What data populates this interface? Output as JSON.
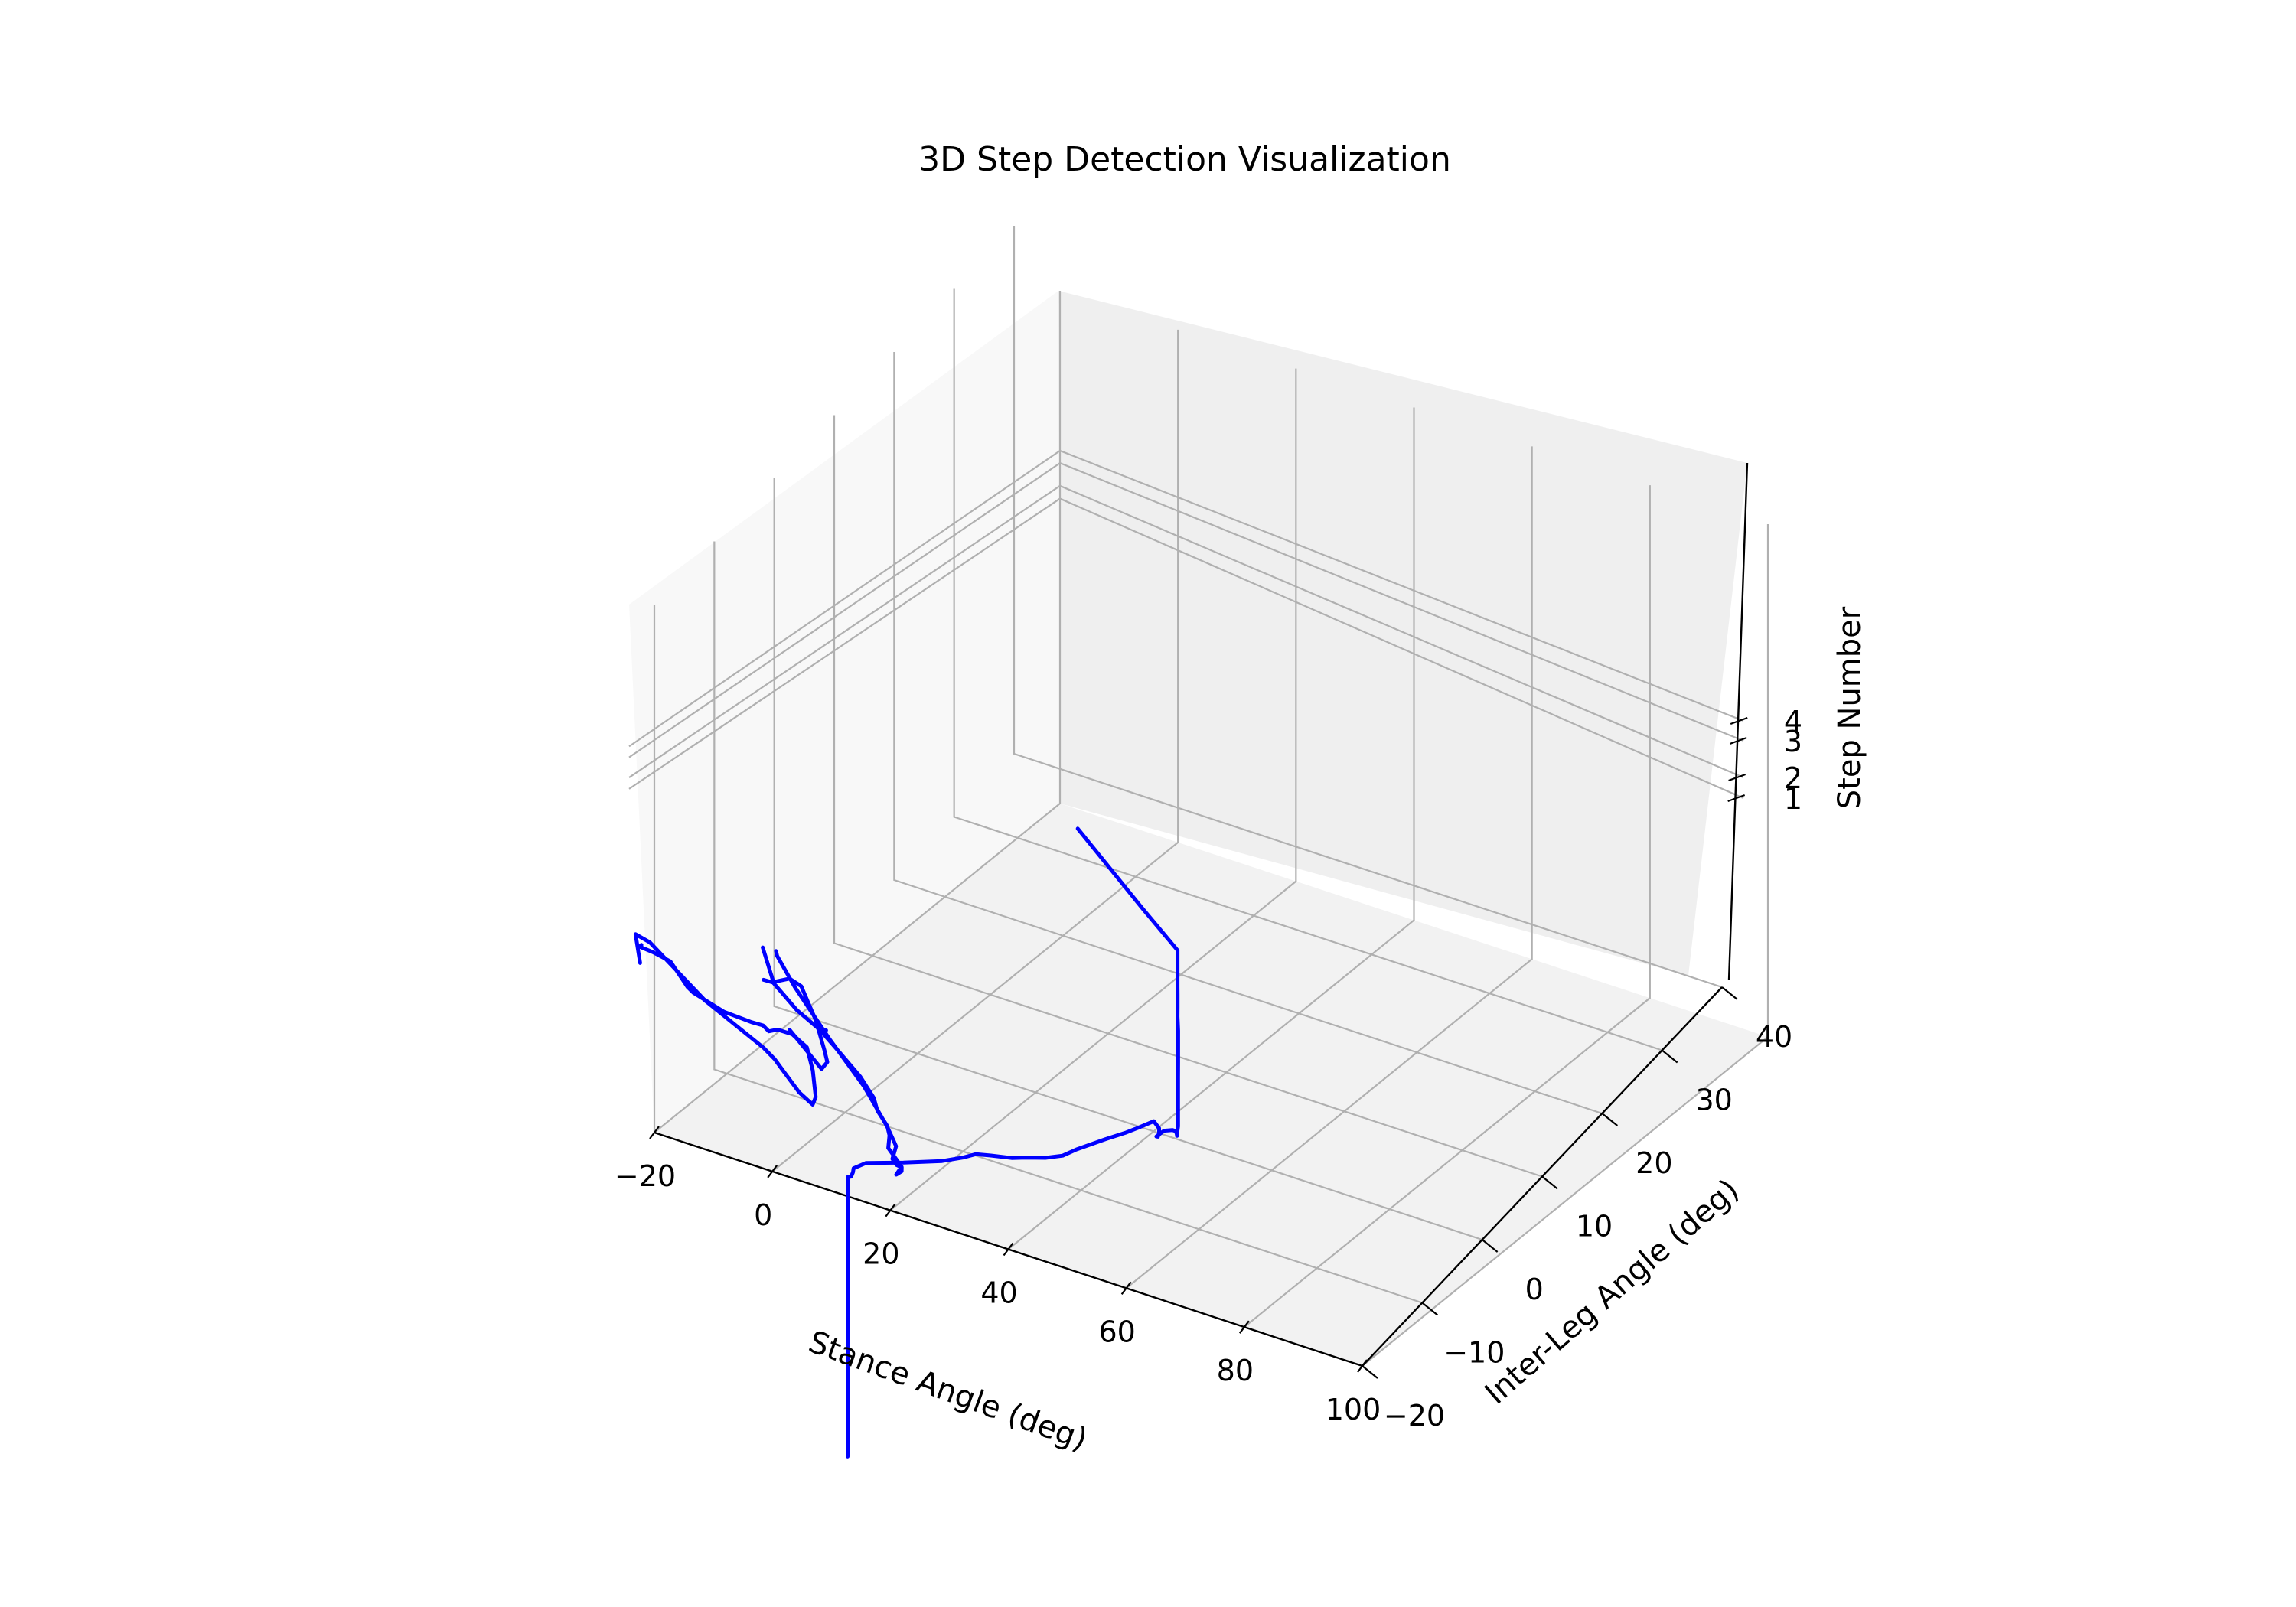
{
  "chart_data": {
    "type": "line",
    "projection": "3d",
    "title": "3D Step Detection Visualization",
    "xlabel": "Stance Angle (deg)",
    "ylabel": "Inter-Leg Angle (deg)",
    "zlabel": "Step Number",
    "xticks": [
      "−20",
      "0",
      "20",
      "40",
      "60",
      "80",
      "100"
    ],
    "yticks": [
      "−20",
      "−10",
      "0",
      "10",
      "20",
      "30",
      "40"
    ],
    "zticks": [
      "1",
      "2",
      "3",
      "4"
    ],
    "grid": true,
    "line_color": "#0000ff",
    "series": [
      {
        "points": [
          [
            51.2,
            -10.6,
            -2.0
          ],
          [
            51.2,
            -10.6,
            4.5
          ],
          [
            51.2,
            -10.6,
            4.52
          ],
          [
            51.7,
            -10.5,
            4.54
          ],
          [
            51.5,
            -10.0,
            4.56
          ],
          [
            51.2,
            -9.6,
            4.58
          ],
          [
            52.0,
            -8.3,
            4.55
          ],
          [
            56.0,
            -6.0,
            4.4
          ],
          [
            60.0,
            -3.5,
            4.25
          ],
          [
            62.0,
            -2.0,
            4.2
          ],
          [
            63.0,
            -0.8,
            4.15
          ],
          [
            64.3,
            0.4,
            4.0
          ],
          [
            66.5,
            1.7,
            3.85
          ],
          [
            67.7,
            2.8,
            3.75
          ],
          [
            69.8,
            4.1,
            3.65
          ],
          [
            71.5,
            5.3,
            3.6
          ],
          [
            72.5,
            6.6,
            3.6
          ],
          [
            75.0,
            9.0,
            3.6
          ],
          [
            76.5,
            10.8,
            3.55
          ],
          [
            77.3,
            12.2,
            3.5
          ],
          [
            78.5,
            13.6,
            3.5
          ],
          [
            79.0,
            14.0,
            3.3
          ],
          [
            78.5,
            14.5,
            3.1
          ],
          [
            77.8,
            15.0,
            2.9
          ],
          [
            76.5,
            16.0,
            2.7
          ],
          [
            76.8,
            17.0,
            2.7
          ],
          [
            78.0,
            17.2,
            2.74
          ],
          [
            79.0,
            16.8,
            2.82
          ],
          [
            80.0,
            16.0,
            2.9
          ],
          [
            80.4,
            15.6,
            2.95
          ],
          [
            80.3,
            15.8,
            3.05
          ],
          [
            80.7,
            15.5,
            3.2
          ],
          [
            80.5,
            15.7,
            3.4
          ],
          [
            80.6,
            15.6,
            3.8
          ],
          [
            80.6,
            15.6,
            4.1
          ],
          [
            80.5,
            15.7,
            4.3
          ],
          [
            80.3,
            15.9,
            4.6
          ],
          [
            80.2,
            16.0,
            5.0
          ],
          [
            80.0,
            16.2,
            5.3
          ],
          [
            79.8,
            16.3,
            5.6
          ],
          [
            79.7,
            16.4,
            5.8
          ],
          [
            79.7,
            16.4,
            6.1
          ],
          [
            79.8,
            16.3,
            6.3
          ],
          [
            79.8,
            16.3,
            6.6
          ],
          [
            79.8,
            16.3,
            6.9
          ],
          [
            79.8,
            16.3,
            7.0
          ],
          [
            79.8,
            16.3,
            7.15
          ],
          [
            70.0,
            20.0,
            7.15
          ],
          [
            52.0,
            27.0,
            7.15
          ]
        ]
      },
      {
        "points": [
          [
            -9.5,
            37.2,
            0.0
          ],
          [
            -8.5,
            36.4,
            0.05
          ],
          [
            0.0,
            31.0,
            0.5
          ],
          [
            15.0,
            22.0,
            1.3
          ],
          [
            30.0,
            13.0,
            2.2
          ],
          [
            41.0,
            6.0,
            2.8
          ],
          [
            45.0,
            3.2,
            3.05
          ],
          [
            46.2,
            2.4,
            3.1
          ],
          [
            46.5,
            1.5,
            2.95
          ],
          [
            47.5,
            1.2,
            2.9
          ],
          [
            49.0,
            0.6,
            3.0
          ],
          [
            50.0,
            -0.4,
            3.1
          ],
          [
            50.5,
            -1.8,
            3.25
          ],
          [
            51.0,
            -1.4,
            3.4
          ],
          [
            46.2,
            1.1,
            3.25
          ],
          [
            45.6,
            1.9,
            3.4
          ],
          [
            44.4,
            2.7,
            3.45
          ],
          [
            41.5,
            3.9,
            3.5
          ],
          [
            39.8,
            5.0,
            3.55
          ],
          [
            36.0,
            6.5,
            3.65
          ],
          [
            30.5,
            8.4,
            3.7
          ],
          [
            26.5,
            9.7,
            3.75
          ],
          [
            24.5,
            10.8,
            3.6
          ],
          [
            24.8,
            11.8,
            3.45
          ],
          [
            23.0,
            12.8,
            3.2
          ],
          [
            13.0,
            18.5,
            2.4
          ],
          [
            1.0,
            26.5,
            1.3
          ],
          [
            -8.5,
            34.0,
            0.6
          ]
        ]
      },
      {
        "points": [
          [
            -25.0,
            30.0,
            0.5
          ],
          [
            -24.5,
            29.2,
            0.6
          ],
          [
            -20.0,
            27.0,
            1.0
          ],
          [
            -14.0,
            24.0,
            1.5
          ],
          [
            -6.0,
            19.0,
            2.0
          ],
          [
            -3.0,
            17.0,
            2.3
          ],
          [
            7.0,
            12.3,
            3.0
          ],
          [
            16.0,
            8.0,
            3.8
          ],
          [
            20.0,
            6.0,
            4.2
          ],
          [
            22.0,
            5.0,
            4.3
          ],
          [
            24.5,
            4.0,
            4.6
          ],
          [
            28.0,
            3.0,
            4.8
          ],
          [
            31.5,
            2.0,
            4.8
          ],
          [
            33.0,
            1.5,
            4.4
          ],
          [
            34.0,
            1.0,
            3.9
          ],
          [
            33.5,
            1.0,
            3.7
          ],
          [
            30.0,
            2.2,
            3.65
          ],
          [
            24.0,
            5.0,
            3.55
          ],
          [
            22.0,
            6.0,
            3.5
          ],
          [
            18.0,
            8.0,
            3.3
          ],
          [
            0.0,
            16.0,
            2.4
          ],
          [
            -20.0,
            26.5,
            1.3
          ],
          [
            -25.5,
            29.5,
            0.8
          ],
          [
            -24.0,
            28.8,
            0.3
          ]
        ]
      },
      {
        "points": [
          [
            15.0,
            11.0,
            4.3
          ],
          [
            18.0,
            9.5,
            4.6
          ],
          [
            21.0,
            8.0,
            5.0
          ],
          [
            24.0,
            6.5,
            5.4
          ],
          [
            28.0,
            4.5,
            5.7
          ],
          [
            33.0,
            2.0,
            5.5
          ],
          [
            36.0,
            0.5,
            5.15
          ],
          [
            37.0,
            0.0,
            5.0
          ],
          [
            35.0,
            1.0,
            4.6
          ],
          [
            25.0,
            5.5,
            4.4
          ]
        ]
      }
    ]
  }
}
